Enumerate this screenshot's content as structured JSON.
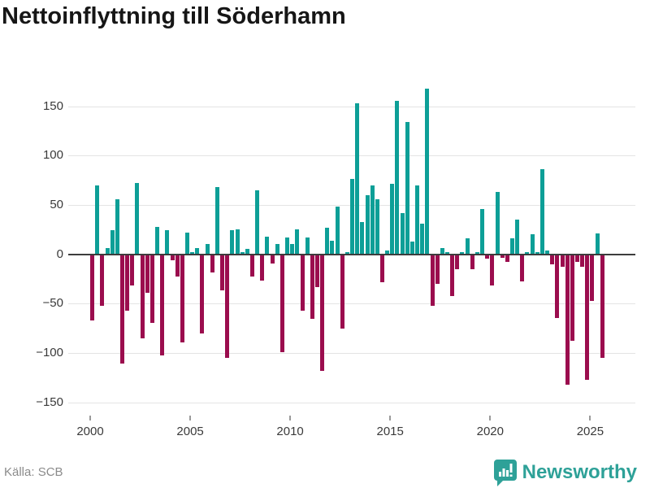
{
  "header": {
    "title": "Nettoinflyttning till Söderhamn"
  },
  "footer": {
    "source": "Källa: SCB",
    "brand": "Newsworthy"
  },
  "colors": {
    "positive": "#0d9f97",
    "negative": "#9b0d4e",
    "grid": "#e4e4e4",
    "zero_line": "#3d3d3d",
    "axis_text": "#3a3a3a",
    "brand_teal": "#2ea198",
    "title_text": "#161616",
    "source_text": "#8b8b8b"
  },
  "chart_data": {
    "type": "bar",
    "title": "Nettoinflyttning till Söderhamn",
    "xlabel": "",
    "ylabel": "",
    "grid": true,
    "legend": false,
    "ylim": [
      -160,
      178
    ],
    "yticks": [
      150,
      100,
      50,
      0,
      -50,
      -100,
      -150
    ],
    "xticks": [
      2000,
      2005,
      2010,
      2015,
      2020,
      2025
    ],
    "x": [
      "2000Q1",
      "2000Q2",
      "2000Q3",
      "2000Q4",
      "2001Q1",
      "2001Q2",
      "2001Q3",
      "2001Q4",
      "2002Q1",
      "2002Q2",
      "2002Q3",
      "2002Q4",
      "2003Q1",
      "2003Q2",
      "2003Q3",
      "2003Q4",
      "2004Q1",
      "2004Q2",
      "2004Q3",
      "2004Q4",
      "2005Q1",
      "2005Q2",
      "2005Q3",
      "2005Q4",
      "2006Q1",
      "2006Q2",
      "2006Q3",
      "2006Q4",
      "2007Q1",
      "2007Q2",
      "2007Q3",
      "2007Q4",
      "2008Q1",
      "2008Q2",
      "2008Q3",
      "2008Q4",
      "2009Q1",
      "2009Q2",
      "2009Q3",
      "2009Q4",
      "2010Q1",
      "2010Q2",
      "2010Q3",
      "2010Q4",
      "2011Q1",
      "2011Q2",
      "2011Q3",
      "2011Q4",
      "2012Q1",
      "2012Q2",
      "2012Q3",
      "2012Q4",
      "2013Q1",
      "2013Q2",
      "2013Q3",
      "2013Q4",
      "2014Q1",
      "2014Q2",
      "2014Q3",
      "2014Q4",
      "2015Q1",
      "2015Q2",
      "2015Q3",
      "2015Q4",
      "2016Q1",
      "2016Q2",
      "2016Q3",
      "2016Q4",
      "2017Q1",
      "2017Q2",
      "2017Q3",
      "2017Q4",
      "2018Q1",
      "2018Q2",
      "2018Q3",
      "2018Q4",
      "2019Q1",
      "2019Q2",
      "2019Q3",
      "2019Q4",
      "2020Q1",
      "2020Q2",
      "2020Q3",
      "2020Q4",
      "2021Q1",
      "2021Q2",
      "2021Q3",
      "2021Q4",
      "2022Q1",
      "2022Q2",
      "2022Q3",
      "2022Q4",
      "2023Q1",
      "2023Q2",
      "2023Q3",
      "2023Q4",
      "2024Q1",
      "2024Q2",
      "2024Q3",
      "2024Q4",
      "2025Q1",
      "2025Q2",
      "2025Q3"
    ],
    "values": [
      -67,
      70,
      -52,
      6,
      24,
      56,
      -110,
      -57,
      -31,
      72,
      -85,
      -39,
      -69,
      28,
      -102,
      24,
      -6,
      -22,
      -89,
      22,
      2,
      6,
      -80,
      10,
      -18,
      68,
      -36,
      -105,
      24,
      25,
      2,
      5,
      -22,
      65,
      -26,
      18,
      -9,
      10,
      -99,
      17,
      10,
      25,
      -57,
      17,
      -65,
      -33,
      -118,
      27,
      14,
      48,
      -75,
      2,
      76,
      153,
      33,
      60,
      70,
      56,
      -28,
      4,
      71,
      155,
      42,
      134,
      13,
      70,
      31,
      168,
      -52,
      -30,
      6,
      2,
      -42,
      -15,
      2,
      16,
      -15,
      2,
      46,
      -4,
      -31,
      63,
      -3,
      -7,
      16,
      35,
      -27,
      2,
      20,
      2,
      86,
      4,
      -10,
      -64,
      -12,
      -132,
      -87,
      -7,
      -12,
      -127,
      -47,
      21,
      -105
    ]
  }
}
